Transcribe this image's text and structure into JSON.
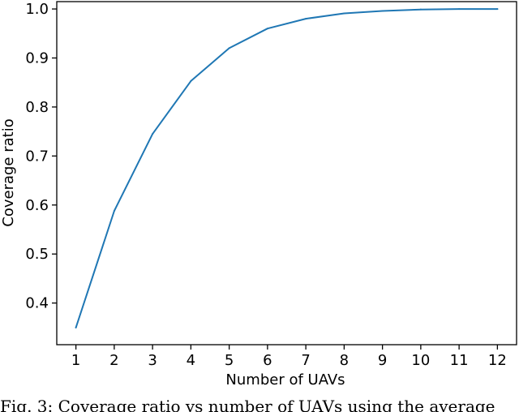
{
  "chart_data": {
    "type": "line",
    "title": "",
    "xlabel": "Number of UAVs",
    "ylabel": "Coverage ratio",
    "x": [
      1,
      2,
      3,
      4,
      5,
      6,
      7,
      8,
      9,
      10,
      11,
      12
    ],
    "xticks": [
      "1",
      "2",
      "3",
      "4",
      "5",
      "6",
      "7",
      "8",
      "9",
      "10",
      "11",
      "12"
    ],
    "yticks": [
      "0.4",
      "0.5",
      "0.6",
      "0.7",
      "0.8",
      "0.9",
      "1.0"
    ],
    "xlim": [
      0.5,
      12.5
    ],
    "ylim": [
      0.315,
      1.015
    ],
    "grid": false,
    "series": [
      {
        "color": "#1f77b4",
        "values": [
          0.35,
          0.588,
          0.745,
          0.853,
          0.92,
          0.96,
          0.98,
          0.991,
          0.996,
          0.999,
          1.0,
          1.0
        ]
      }
    ]
  },
  "caption": "Fig. 3: Coverage ratio vs number of UAVs using the average"
}
